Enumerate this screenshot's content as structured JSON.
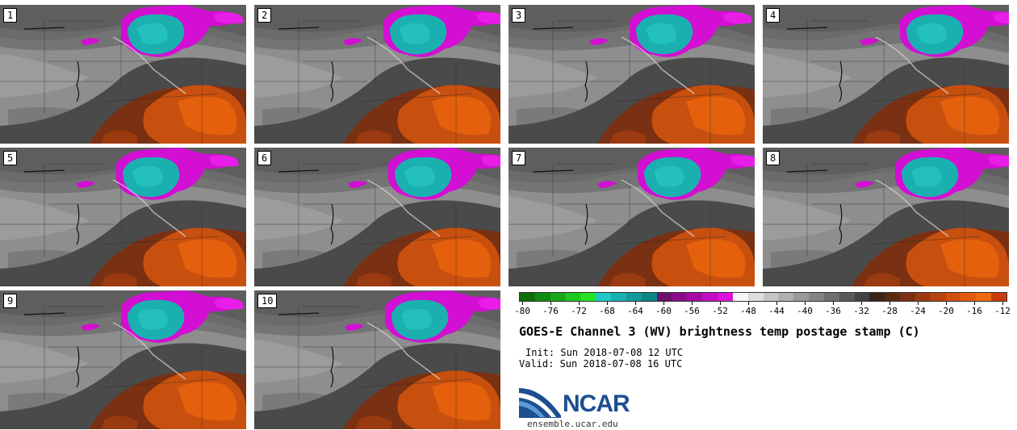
{
  "panels": [
    {
      "label": "1"
    },
    {
      "label": "2"
    },
    {
      "label": "3"
    },
    {
      "label": "4"
    },
    {
      "label": "5"
    },
    {
      "label": "6"
    },
    {
      "label": "7"
    },
    {
      "label": "8"
    },
    {
      "label": "9"
    },
    {
      "label": "10"
    }
  ],
  "colorbar": {
    "ticks": [
      "-80",
      "-76",
      "-72",
      "-68",
      "-64",
      "-60",
      "-56",
      "-52",
      "-48",
      "-44",
      "-40",
      "-36",
      "-32",
      "-28",
      "-24",
      "-20",
      "-16",
      "-12"
    ],
    "colors": [
      "#0a6e0a",
      "#118a11",
      "#1aa81a",
      "#1fc61f",
      "#25e225",
      "#1fc8c8",
      "#17b0b0",
      "#129a9a",
      "#0e8585",
      "#6e0f6e",
      "#8a0a8a",
      "#a50aa5",
      "#c010c0",
      "#dd10dd",
      "#f5f5f5",
      "#dedede",
      "#c6c6c6",
      "#b0b0b0",
      "#9a9a9a",
      "#848484",
      "#6e6e6e",
      "#585858",
      "#424242",
      "#3a2218",
      "#5a2a12",
      "#7a3012",
      "#9a3a10",
      "#b8440e",
      "#d24e0c",
      "#e45a0c",
      "#f0680c",
      "#c83c0c"
    ]
  },
  "title": "GOES-E Channel 3 (WV) brightness temp postage stamp (C)",
  "init": "Init: Sun 2018-07-08 12 UTC",
  "valid": "Valid: Sun 2018-07-08 16 UTC",
  "logo": {
    "text": "NCAR",
    "url": "ensemble.ucar.edu"
  }
}
